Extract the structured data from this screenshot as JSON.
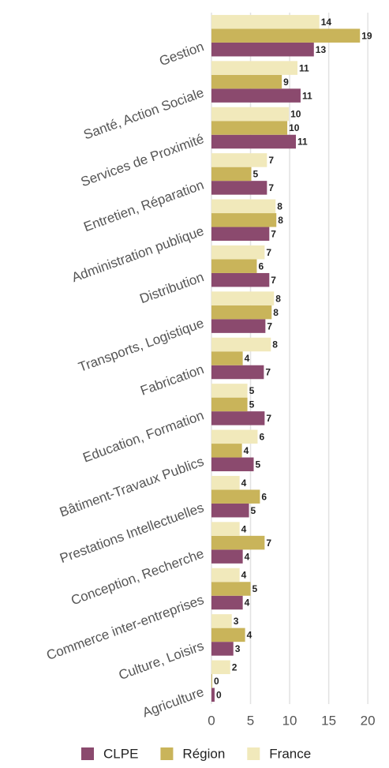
{
  "chart_data": {
    "type": "hbar",
    "categories": [
      "Gestion",
      "Santé, Action Sociale",
      "Services de Proximité",
      "Entretien, Réparation",
      "Administration publique",
      "Distribution",
      "Transports, Logistique",
      "Fabrication",
      "Education, Formation",
      "Bâtiment-Travaux Publics",
      "Prestations Intellectuelles",
      "Conception, Recherche",
      "Commerce inter-entreprises",
      "Culture, Loisirs",
      "Agriculture"
    ],
    "series": [
      {
        "name": "CLPE",
        "color": "#8b4a6e",
        "values": [
          13.1,
          11.4,
          10.8,
          7.1,
          7.4,
          7.4,
          6.9,
          6.7,
          6.8,
          5.4,
          4.8,
          4.0,
          4.0,
          2.8,
          0.4
        ],
        "value_labels": [
          "13",
          "11",
          "11",
          "7",
          "7",
          "7",
          "7",
          "7",
          "7",
          "5",
          "5",
          "4",
          "4",
          "3",
          "0"
        ]
      },
      {
        "name": "Région",
        "color": "#c9b45a",
        "values": [
          19.0,
          9.0,
          9.7,
          5.1,
          8.3,
          5.8,
          7.7,
          4.0,
          4.6,
          3.9,
          6.2,
          6.8,
          5.0,
          4.3,
          0.1
        ],
        "value_labels": [
          "19",
          "9",
          "10",
          "5",
          "8",
          "6",
          "8",
          "4",
          "5",
          "4",
          "6",
          "7",
          "5",
          "4",
          "0"
        ]
      },
      {
        "name": "France",
        "color": "#f1e9bb",
        "values": [
          13.8,
          11.0,
          9.9,
          7.1,
          8.2,
          6.8,
          8.0,
          7.6,
          4.6,
          5.9,
          3.6,
          3.6,
          3.6,
          2.6,
          2.4
        ],
        "value_labels": [
          "14",
          "11",
          "10",
          "7",
          "8",
          "7",
          "8",
          "8",
          "5",
          "6",
          "4",
          "4",
          "4",
          "3",
          "2"
        ]
      }
    ],
    "xlim": [
      0,
      21.5
    ],
    "xticks": [
      0,
      5,
      10,
      15,
      20
    ],
    "grid": true
  }
}
